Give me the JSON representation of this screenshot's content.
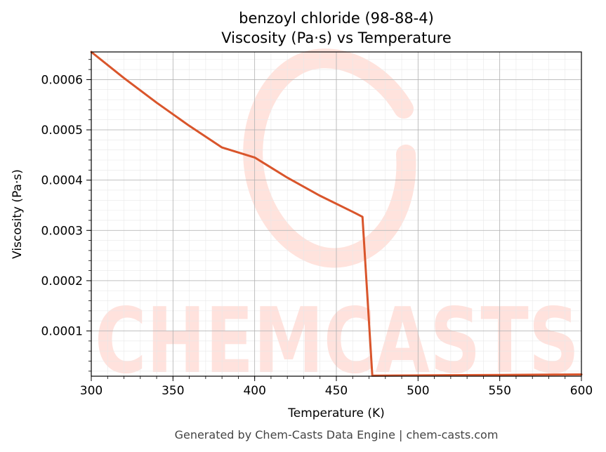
{
  "chart_data": {
    "type": "line",
    "title": "benzoyl chloride (98-88-4)",
    "subtitle": "Viscosity (Pa·s) vs Temperature",
    "xlabel": "Temperature (K)",
    "ylabel": "Viscosity (Pa·s)",
    "xlim": [
      300,
      600
    ],
    "ylim": [
      1e-05,
      0.000655
    ],
    "xticks": [
      300,
      350,
      400,
      450,
      500,
      550,
      600
    ],
    "yticks": [
      0.0001,
      0.0002,
      0.0003,
      0.0004,
      0.0005,
      0.0006
    ],
    "ytick_labels": [
      "0.0001",
      "0.0002",
      "0.0003",
      "0.0004",
      "0.0005",
      "0.0006"
    ],
    "grid": true,
    "series": [
      {
        "color": "#d9552b",
        "x": [
          300,
          320,
          340,
          360,
          380,
          400,
          420,
          440,
          460,
          466,
          472,
          500,
          550,
          600
        ],
        "y": [
          0.000655,
          0.000603,
          0.000554,
          0.000508,
          0.000465,
          0.000445,
          0.000405,
          0.000369,
          0.000337,
          0.000327,
          1.1e-05,
          1.15e-05,
          1.25e-05,
          1.35e-05
        ]
      }
    ]
  },
  "watermark": {
    "text": "CHEMCASTS",
    "color": "#ffd9d2"
  },
  "footer": "Generated by Chem-Casts Data Engine | chem-casts.com"
}
